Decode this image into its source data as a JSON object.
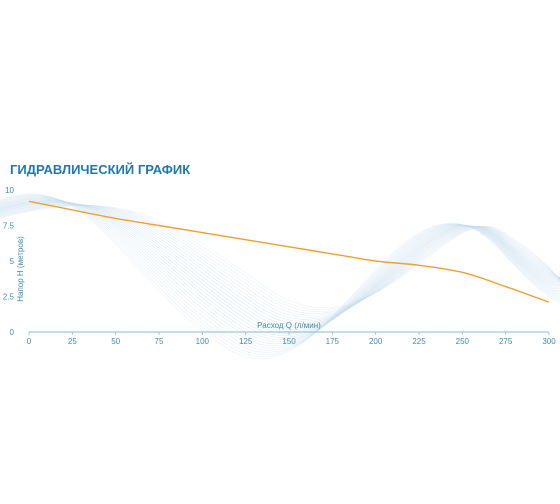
{
  "chart_data": {
    "type": "line",
    "title": "ГИДРАВЛИЧЕСКИЙ ГРАФИК",
    "xlabel": "Расход Q (л/мин)",
    "ylabel": "Напор Н (метров)",
    "xlim": [
      0,
      300
    ],
    "ylim": [
      0,
      10
    ],
    "x_ticks": [
      0,
      25,
      50,
      75,
      100,
      125,
      150,
      175,
      200,
      225,
      250,
      275,
      300
    ],
    "y_ticks": [
      0,
      2.5,
      5,
      7.5,
      10
    ],
    "y_tick_labels": [
      "0",
      "2.5",
      "5",
      "7.5",
      "10"
    ],
    "grid": false,
    "series": [
      {
        "color": "#f0a030",
        "x": [
          0,
          25,
          50,
          75,
          100,
          125,
          150,
          175,
          200,
          225,
          250,
          275,
          300
        ],
        "y": [
          9.2,
          8.6,
          8.0,
          7.5,
          7.0,
          6.5,
          6.0,
          5.5,
          5.0,
          4.7,
          4.2,
          3.2,
          2.1
        ]
      }
    ]
  },
  "colors": {
    "title": "#1f78b4",
    "axis": "#3f8bb3",
    "background_waves": "#c5dced"
  }
}
